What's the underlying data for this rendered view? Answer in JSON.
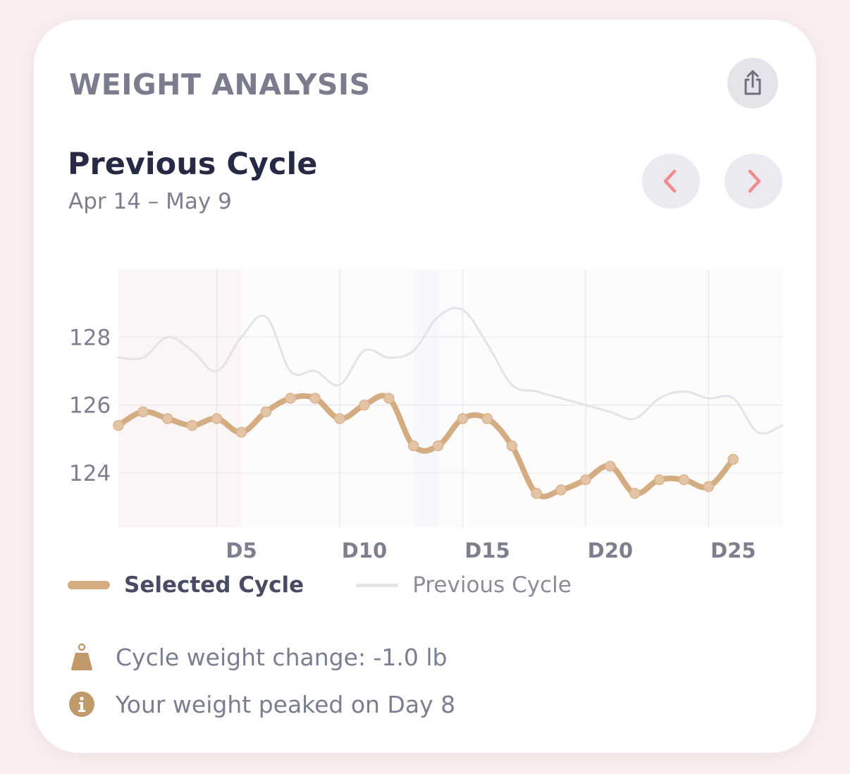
{
  "card": {
    "section_title": "WEIGHT ANALYSIS",
    "share_icon": "share-icon",
    "cycle_title": "Previous Cycle",
    "cycle_range": "Apr 14 – May 9",
    "prev_icon": "chevron-left-icon",
    "next_icon": "chevron-right-icon",
    "accent_color": "#f08c8c"
  },
  "chart_data": {
    "type": "line",
    "x_tick_labels": [
      "D5",
      "D10",
      "D15",
      "D20",
      "D25"
    ],
    "x_ticks": [
      5,
      10,
      15,
      20,
      25
    ],
    "y_tick_labels": [
      "128",
      "126",
      "124"
    ],
    "y_ticks": [
      128,
      126,
      124
    ],
    "xlim": [
      1,
      28
    ],
    "ylim": [
      122.4,
      130
    ],
    "grid": true,
    "series": [
      {
        "name": "Selected Cycle",
        "color": "#d4ac82",
        "x": [
          1,
          2,
          3,
          4,
          5,
          6,
          7,
          8,
          9,
          10,
          11,
          12,
          13,
          14,
          15,
          16,
          17,
          18,
          19,
          20,
          21,
          22,
          23,
          24,
          25,
          26
        ],
        "y": [
          125.4,
          125.8,
          125.6,
          125.4,
          125.6,
          125.2,
          125.8,
          126.2,
          126.2,
          125.6,
          126.0,
          126.2,
          124.8,
          124.8,
          125.6,
          125.6,
          124.8,
          123.4,
          123.5,
          123.8,
          124.2,
          123.4,
          123.8,
          123.8,
          123.6,
          124.4
        ]
      },
      {
        "name": "Previous Cycle",
        "color": "#e3e3e8",
        "x": [
          1,
          2,
          3,
          4,
          5,
          6,
          7,
          8,
          9,
          10,
          11,
          12,
          13,
          14,
          15,
          16,
          17,
          18,
          19,
          20,
          21,
          22,
          23,
          24,
          25,
          26,
          27,
          28
        ],
        "y": [
          127.4,
          127.4,
          128.0,
          127.6,
          127.0,
          128.0,
          128.6,
          127.0,
          127.0,
          126.6,
          127.6,
          127.4,
          127.6,
          128.6,
          128.8,
          127.8,
          126.6,
          126.4,
          126.2,
          126.0,
          125.8,
          125.6,
          126.2,
          126.4,
          126.2,
          126.2,
          125.2,
          125.4
        ]
      }
    ]
  },
  "legend": {
    "selected_label": "Selected Cycle",
    "previous_label": "Previous Cycle"
  },
  "insights": [
    {
      "icon": "weight-icon",
      "text": "Cycle weight change: -1.0 lb"
    },
    {
      "icon": "info-icon",
      "text": "Your weight peaked on Day 8"
    }
  ],
  "icon_color": "#c19a6b"
}
